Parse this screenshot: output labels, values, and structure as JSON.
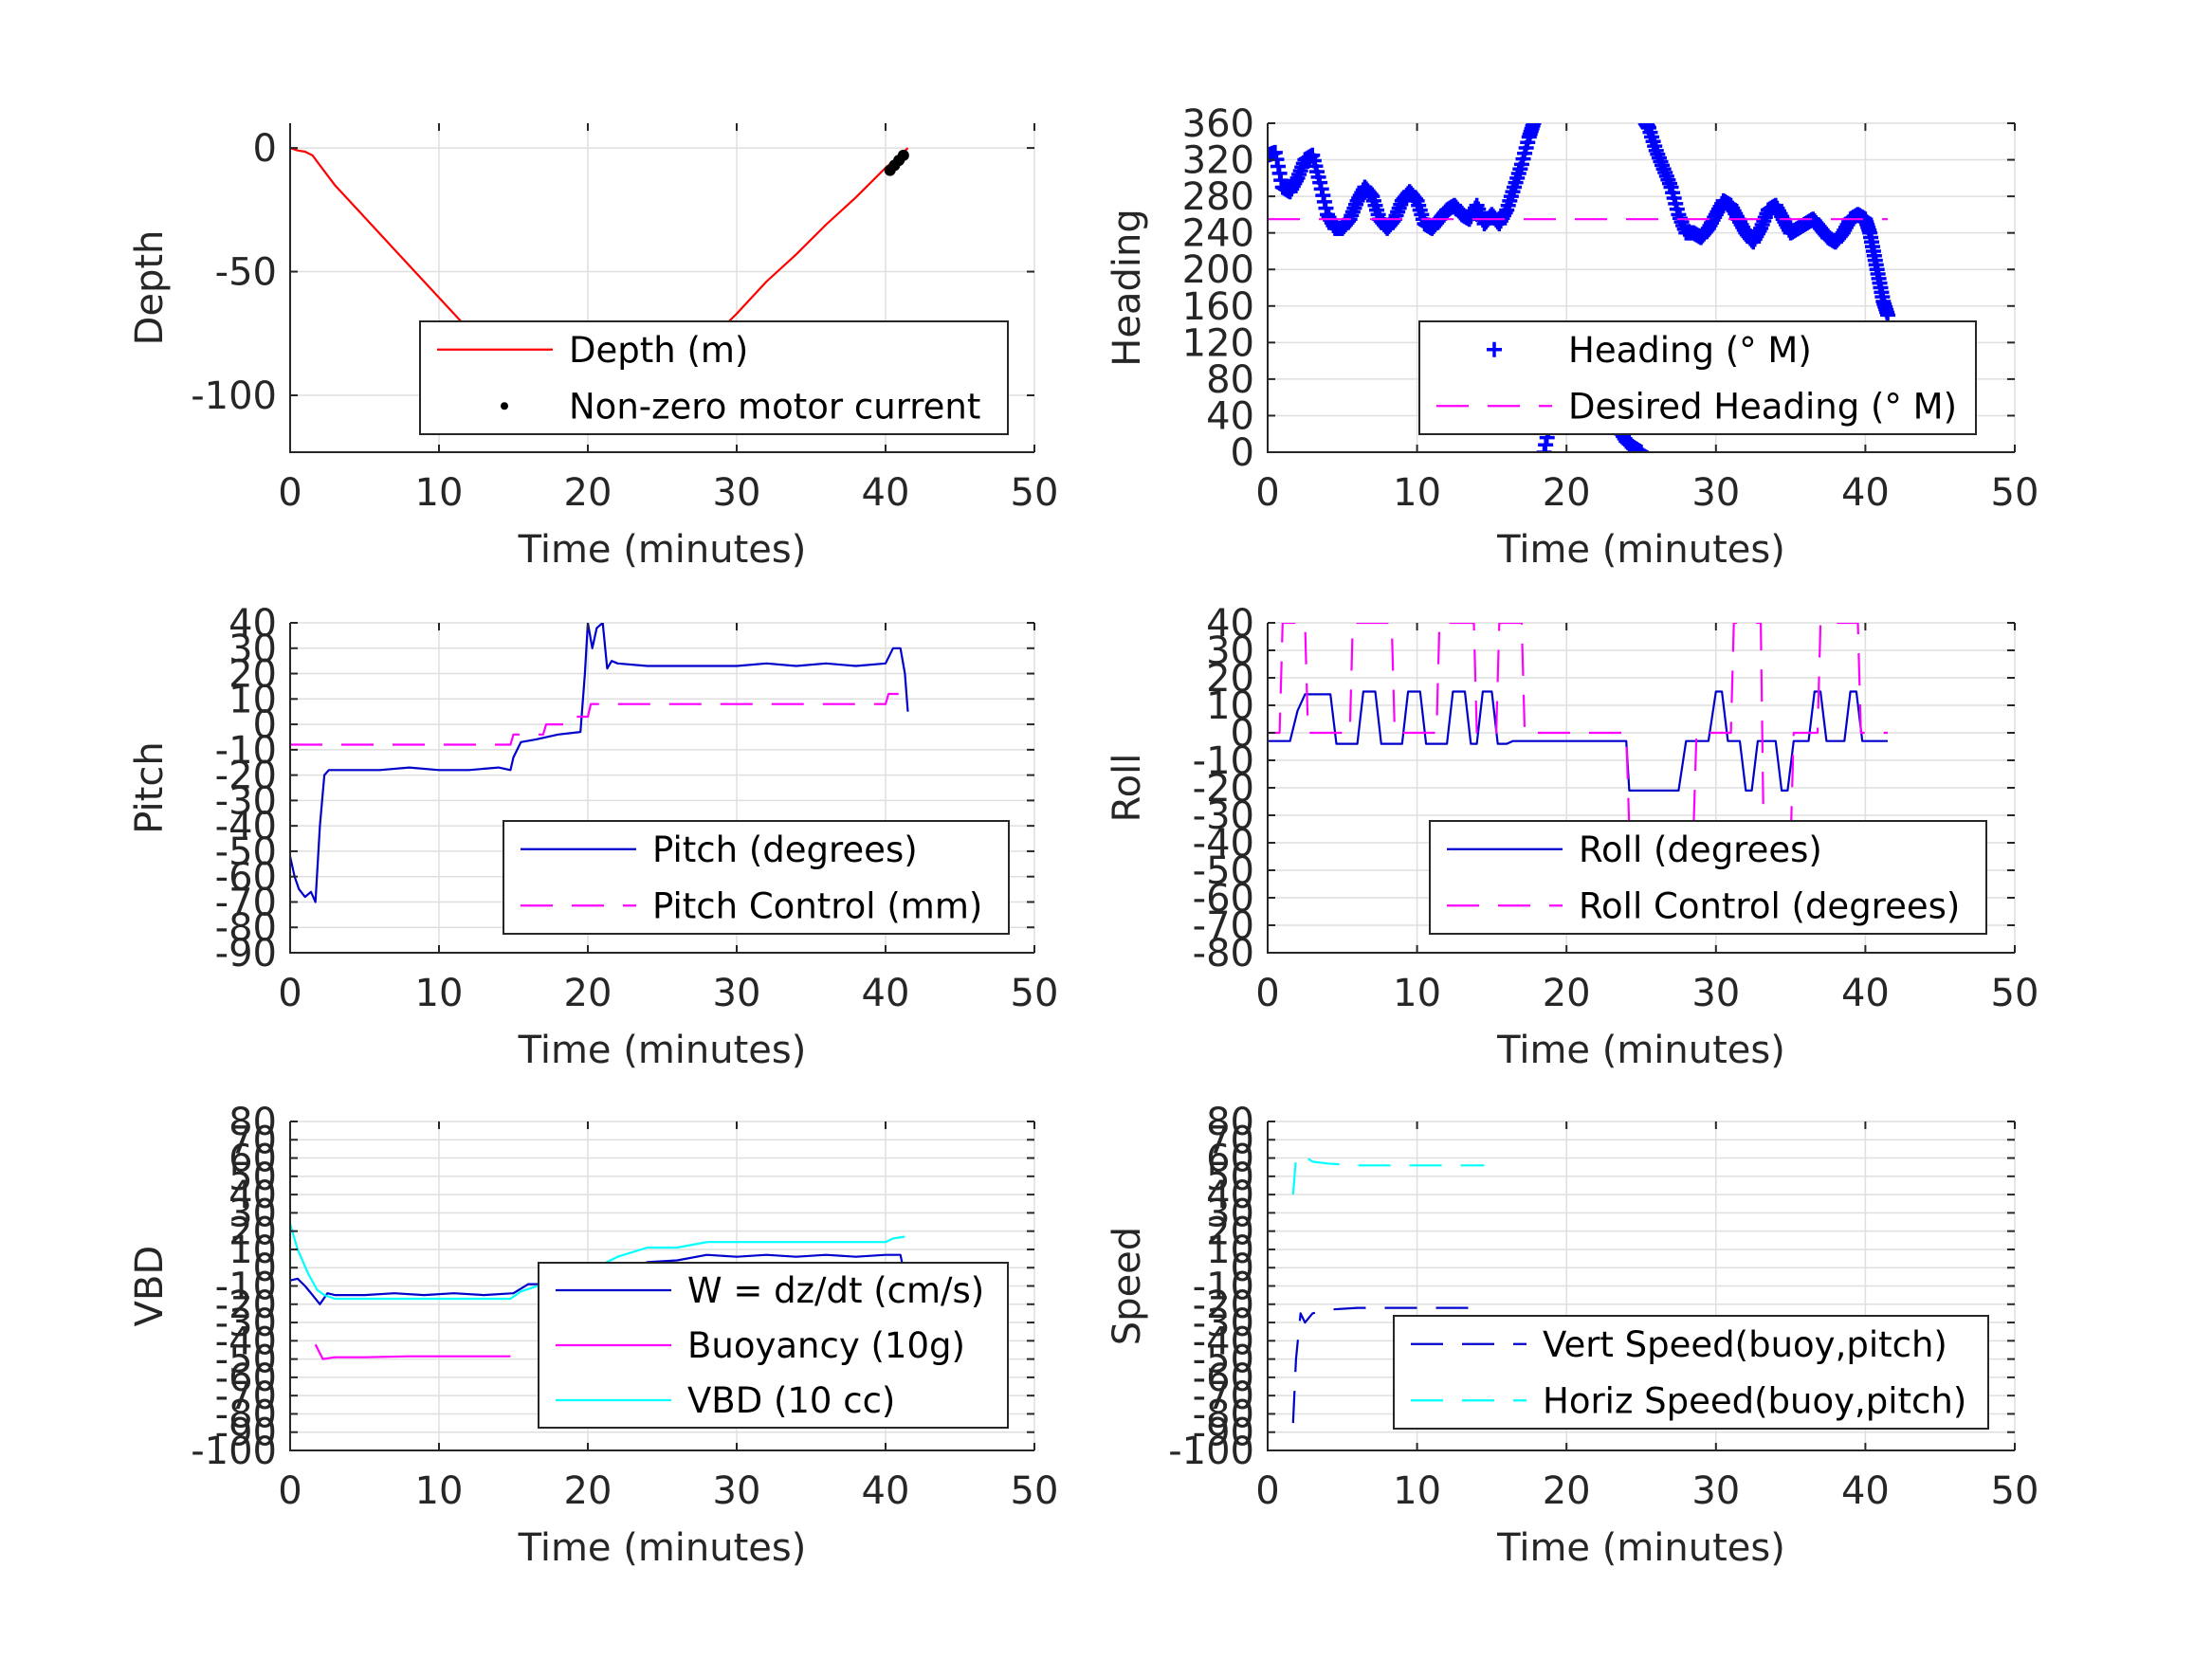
{
  "chart_data": [
    {
      "id": "depth",
      "type": "line",
      "xlabel": "Time (minutes)",
      "ylabel": "Depth",
      "xlim": [
        0,
        50
      ],
      "ylim": [
        -123,
        10
      ],
      "xticks": [
        0,
        10,
        20,
        30,
        40,
        50
      ],
      "yticks": [
        0,
        -50,
        -100
      ],
      "grid": true,
      "legend_position": "bottom-right",
      "series": [
        {
          "name": "Depth (m)",
          "style": "line",
          "color": "#ff0000",
          "x": [
            0,
            0.5,
            1.0,
            1.5,
            2.0,
            3,
            5,
            7,
            9,
            11,
            13,
            14,
            15,
            16,
            17,
            18,
            19,
            20,
            21,
            21.5,
            22,
            23,
            24,
            26,
            28,
            30,
            32,
            34,
            36,
            38,
            40,
            41,
            41.5
          ],
          "y": [
            0,
            -1,
            -1.5,
            -3,
            -7,
            -15,
            -28,
            -41,
            -54,
            -67,
            -80,
            -89,
            -102,
            -105,
            -107,
            -109,
            -111,
            -112,
            -113,
            -113,
            -112,
            -109,
            -104,
            -92,
            -79,
            -67,
            -54,
            -43,
            -31,
            -20,
            -8,
            -3,
            0
          ]
        },
        {
          "name": "Non-zero motor current",
          "style": "dots",
          "color": "#000000",
          "x": [
            13.8,
            15.2,
            15.8,
            16.3,
            16.8,
            17.3,
            17.8,
            18.3,
            18.8,
            19.3,
            19.8,
            20.3,
            20.8,
            21.3,
            21.8,
            22.3,
            22.8,
            23.3,
            23.8,
            40.3,
            40.6,
            40.9,
            41.2
          ],
          "y": [
            -102,
            -103,
            -104,
            -105,
            -106,
            -107,
            -108,
            -109,
            -110,
            -111,
            -111.5,
            -112,
            -112.5,
            -113,
            -112.5,
            -111.5,
            -110,
            -108.5,
            -106,
            -9,
            -7,
            -5,
            -3
          ]
        }
      ]
    },
    {
      "id": "heading",
      "type": "scatter",
      "xlabel": "Time (minutes)",
      "ylabel": "Heading",
      "xlim": [
        0,
        50
      ],
      "ylim": [
        0,
        360
      ],
      "xticks": [
        0,
        10,
        20,
        30,
        40,
        50
      ],
      "yticks": [
        0,
        40,
        80,
        120,
        160,
        200,
        240,
        280,
        320,
        360
      ],
      "grid": true,
      "legend_position": "bottom-right",
      "series": [
        {
          "name": "Heading (° M)",
          "style": "plus",
          "color": "#0000ff",
          "x": [
            0,
            0.5,
            1,
            1.5,
            2,
            2.5,
            3,
            3.5,
            4,
            4.5,
            5,
            5.5,
            6,
            6.5,
            7,
            7.5,
            8,
            8.5,
            9,
            9.5,
            10,
            10.5,
            11,
            11.5,
            12,
            12.5,
            13,
            13.5,
            14,
            14.5,
            15,
            15.5,
            16,
            16.5,
            17,
            17.5,
            17.8,
            18.5,
            19,
            19.5,
            20,
            20.5,
            21,
            21.5,
            22,
            22.5,
            23,
            23.5,
            24,
            24.5,
            25,
            25.3,
            25.5,
            26,
            26.5,
            27,
            27.5,
            28,
            28.5,
            29,
            29.5,
            30,
            30.5,
            31,
            31.5,
            32,
            32.5,
            33,
            33.5,
            34,
            34.5,
            35,
            35.5,
            36,
            36.5,
            37,
            37.5,
            38,
            38.5,
            39,
            39.5,
            40,
            40.3,
            40.6,
            40.9,
            41.2,
            41.5
          ],
          "y": [
            325,
            328,
            290,
            285,
            300,
            320,
            325,
            295,
            260,
            245,
            245,
            255,
            275,
            290,
            280,
            255,
            245,
            255,
            275,
            285,
            275,
            250,
            245,
            255,
            265,
            270,
            260,
            255,
            270,
            250,
            260,
            250,
            265,
            290,
            315,
            345,
            360,
            0,
            40,
            70,
            95,
            110,
            110,
            100,
            80,
            60,
            40,
            25,
            12,
            5,
            0,
            360,
            355,
            330,
            310,
            290,
            260,
            240,
            240,
            235,
            245,
            260,
            275,
            270,
            255,
            240,
            230,
            245,
            265,
            270,
            255,
            240,
            245,
            250,
            255,
            245,
            235,
            230,
            240,
            255,
            260,
            255,
            240,
            215,
            190,
            165,
            150
          ]
        },
        {
          "name": "Desired Heading (° M)",
          "style": "dashed",
          "color": "#ff00ff",
          "x": [
            0,
            41.5
          ],
          "y": [
            255,
            255
          ]
        }
      ]
    },
    {
      "id": "pitch",
      "type": "line",
      "xlabel": "Time (minutes)",
      "ylabel": "Pitch",
      "xlim": [
        0,
        50
      ],
      "ylim": [
        -90,
        40
      ],
      "xticks": [
        0,
        10,
        20,
        30,
        40,
        50
      ],
      "yticks": [
        40,
        30,
        20,
        10,
        0,
        -10,
        -20,
        -30,
        -40,
        -50,
        -60,
        -70,
        -80,
        -90
      ],
      "grid": true,
      "legend_position": "bottom-right",
      "series": [
        {
          "name": "Pitch (degrees)",
          "style": "line",
          "color": "#0000cc",
          "x": [
            0,
            0.3,
            0.6,
            1.0,
            1.4,
            1.7,
            2.0,
            2.3,
            2.6,
            4,
            6,
            8,
            10,
            12,
            14,
            14.8,
            15.0,
            15.5,
            16.5,
            18,
            19.5,
            19.8,
            20.0,
            20.3,
            20.6,
            21,
            21.3,
            21.6,
            22,
            24,
            26,
            28,
            30,
            32,
            34,
            36,
            38,
            40,
            40.5,
            41,
            41.3,
            41.5
          ],
          "y": [
            -52,
            -60,
            -65,
            -68,
            -66,
            -70,
            -40,
            -20,
            -18,
            -18,
            -18,
            -17,
            -18,
            -18,
            -17,
            -18,
            -13,
            -7,
            -6,
            -4,
            -3,
            20,
            40,
            30,
            38,
            40,
            22,
            25,
            24,
            23,
            23,
            23,
            23,
            24,
            23,
            24,
            23,
            24,
            30,
            30,
            20,
            5
          ]
        },
        {
          "name": "Pitch Control (mm)",
          "style": "dashed",
          "color": "#ff00ff",
          "x": [
            0,
            14.8,
            15.0,
            17.0,
            17.2,
            18.5,
            18.7,
            20.0,
            20.2,
            40.0,
            40.2,
            41.5
          ],
          "y": [
            -8,
            -8,
            -4,
            -4,
            0,
            0,
            3,
            3,
            8,
            8,
            12,
            12
          ]
        }
      ]
    },
    {
      "id": "roll",
      "type": "line",
      "xlabel": "Time (minutes)",
      "ylabel": "Roll",
      "xlim": [
        0,
        50
      ],
      "ylim": [
        -80,
        40
      ],
      "xticks": [
        0,
        10,
        20,
        30,
        40,
        50
      ],
      "yticks": [
        40,
        30,
        20,
        10,
        0,
        -10,
        -20,
        -30,
        -40,
        -50,
        -60,
        -70,
        -80
      ],
      "grid": true,
      "legend_position": "bottom-right",
      "series": [
        {
          "name": "Roll (degrees)",
          "style": "line",
          "color": "#0000cc",
          "x": [
            0,
            1.5,
            2.0,
            2.5,
            3.5,
            4.2,
            4.6,
            6.0,
            6.4,
            7.2,
            7.6,
            9.0,
            9.4,
            10.2,
            10.6,
            12.0,
            12.4,
            13.2,
            13.6,
            14.0,
            14.4,
            15.0,
            15.4,
            16.0,
            16.4,
            24.0,
            24.2,
            27.5,
            28.0,
            29.5,
            30.0,
            30.4,
            30.8,
            31.6,
            32.0,
            32.4,
            32.8,
            34.0,
            34.4,
            34.8,
            35.2,
            36.2,
            36.6,
            37.0,
            37.4,
            38.6,
            39.0,
            39.4,
            39.8,
            40.5,
            41.5
          ],
          "y": [
            -3,
            -3,
            8,
            14,
            14,
            14,
            -4,
            -4,
            15,
            15,
            -4,
            -4,
            15,
            15,
            -4,
            -4,
            15,
            15,
            -4,
            -4,
            15,
            15,
            -4,
            -4,
            -3,
            -3,
            -21,
            -21,
            -3,
            -3,
            15,
            15,
            -3,
            -3,
            -21,
            -21,
            -3,
            -3,
            -21,
            -21,
            -3,
            -3,
            15,
            15,
            -3,
            -3,
            15,
            15,
            -3,
            -3,
            -3
          ]
        },
        {
          "name": "Roll Control (degrees)",
          "style": "dashed",
          "color": "#ff00ff",
          "x": [
            0,
            0.8,
            1.0,
            2.5,
            2.7,
            5.5,
            5.7,
            8.3,
            8.5,
            11.3,
            11.5,
            13.8,
            14.0,
            15.3,
            15.5,
            17.0,
            17.2,
            24.0,
            24.2,
            28.5,
            28.7,
            31.0,
            31.2,
            33.0,
            33.2,
            35.0,
            35.2,
            36.8,
            37.0,
            39.5,
            39.7,
            41.5
          ],
          "y": [
            0,
            0,
            40,
            40,
            0,
            0,
            40,
            40,
            0,
            0,
            40,
            40,
            0,
            0,
            40,
            40,
            0,
            0,
            -35,
            -35,
            0,
            0,
            40,
            40,
            -40,
            -40,
            0,
            0,
            40,
            40,
            0,
            0
          ]
        }
      ]
    },
    {
      "id": "vbd",
      "type": "line",
      "xlabel": "Time (minutes)",
      "ylabel": "VBD",
      "xlim": [
        0,
        50
      ],
      "ylim": [
        -100,
        80
      ],
      "xticks": [
        0,
        10,
        20,
        30,
        40,
        50
      ],
      "yticks": [
        80,
        70,
        60,
        50,
        40,
        30,
        20,
        10,
        0,
        -10,
        -20,
        -30,
        -40,
        -50,
        -60,
        -70,
        -80,
        -90,
        -100
      ],
      "ytick_labels": [
        "80",
        "70",
        "60",
        "50",
        "40",
        "30",
        "20",
        "10",
        "0",
        "-10",
        "-20",
        "-30",
        "-40",
        "-50",
        "-60",
        "-70",
        "-80",
        "-90",
        "-100"
      ],
      "grid": true,
      "legend_position": "bottom-right",
      "series": [
        {
          "name": "W = dz/dt (cm/s)",
          "style": "line",
          "color": "#0000cc",
          "x": [
            0,
            0.5,
            1.0,
            1.5,
            2.0,
            2.5,
            3,
            5,
            7,
            9,
            11,
            13,
            15,
            16,
            18,
            20,
            22,
            24,
            26,
            28,
            30,
            32,
            34,
            36,
            38,
            40,
            40.5,
            41,
            41.3
          ],
          "y": [
            -7,
            -6,
            -10,
            -15,
            -20,
            -14,
            -15,
            -15,
            -14,
            -15,
            -14,
            -15,
            -14,
            -9,
            -9,
            -7,
            -2,
            3,
            4,
            7,
            6,
            7,
            6,
            7,
            6,
            7,
            7,
            7,
            -5
          ]
        },
        {
          "name": "Buoyancy (10g)",
          "style": "line",
          "color": "#ff00ff",
          "x": [
            1.7,
            2.2,
            3,
            5,
            8,
            11,
            14.8
          ],
          "y": [
            -42,
            -50,
            -49,
            -49,
            -48.5,
            -48.5,
            -48.5
          ]
        },
        {
          "name": "VBD (10 cc)",
          "style": "line",
          "color": "#00ffff",
          "x": [
            0,
            0.5,
            1.2,
            1.8,
            2.3,
            3,
            5,
            8,
            11,
            14.8,
            15.5,
            17.0,
            18.5,
            20.0,
            22.0,
            24.0,
            26,
            28,
            30,
            32,
            34,
            36,
            38,
            40,
            40.5,
            41.3
          ],
          "y": [
            24,
            10,
            -3,
            -12,
            -15,
            -17,
            -17,
            -17,
            -17,
            -17,
            -13,
            -9,
            -5,
            -2,
            6,
            11,
            11,
            14,
            14,
            14,
            14,
            14,
            14,
            14,
            16,
            17
          ]
        }
      ]
    },
    {
      "id": "speed",
      "type": "line",
      "xlabel": "Time (minutes)",
      "ylabel": "Speed",
      "xlim": [
        0,
        50
      ],
      "ylim": [
        -100,
        80
      ],
      "xticks": [
        0,
        10,
        20,
        30,
        40,
        50
      ],
      "yticks": [
        80,
        70,
        60,
        50,
        40,
        30,
        20,
        10,
        0,
        -10,
        -20,
        -30,
        -40,
        -50,
        -60,
        -70,
        -80,
        -90,
        -100
      ],
      "ytick_labels": [
        "80",
        "70",
        "60",
        "50",
        "40",
        "30",
        "20",
        "10",
        "0",
        "-10",
        "-20",
        "-30",
        "-40",
        "-50",
        "-60",
        "-70",
        "-80",
        "-90",
        "-100"
      ],
      "grid": true,
      "legend_position": "bottom-right",
      "series": [
        {
          "name": "Vert Speed(buoy,pitch)",
          "style": "dashed",
          "color": "#0000cc",
          "x": [
            1.7,
            1.9,
            2.2,
            2.5,
            3.0,
            4,
            6,
            8,
            10,
            12,
            14.5
          ],
          "y": [
            -85,
            -50,
            -25,
            -30,
            -25,
            -23,
            -22,
            -22,
            -22,
            -22,
            -22
          ]
        },
        {
          "name": "Horiz Speed(buoy,pitch)",
          "style": "dashed",
          "color": "#00ffff",
          "x": [
            1.7,
            1.9,
            2.3,
            3.0,
            4,
            6,
            8,
            10,
            12,
            14.5
          ],
          "y": [
            40,
            60,
            62,
            58,
            57,
            56,
            56,
            56,
            56,
            56
          ]
        }
      ]
    }
  ]
}
